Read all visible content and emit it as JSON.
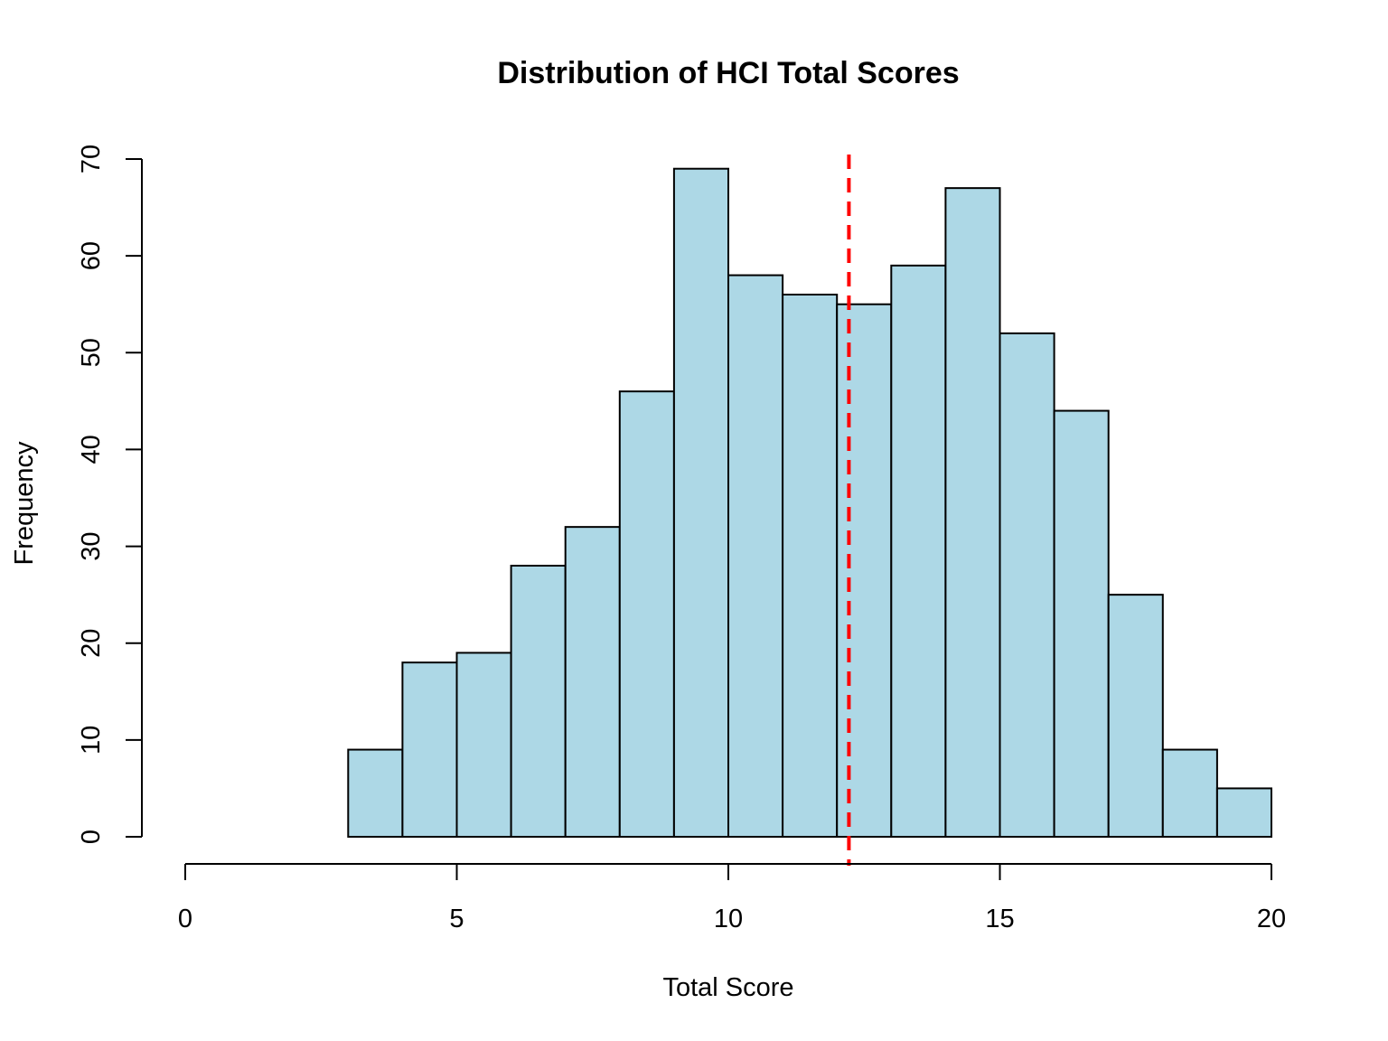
{
  "chart_data": {
    "type": "bar",
    "title": "Distribution of HCI Total Scores",
    "xlabel": "Total Score",
    "ylabel": "Frequency",
    "xlim": [
      0,
      20
    ],
    "ylim": [
      0,
      70
    ],
    "x_ticks": [
      0,
      5,
      10,
      15,
      20
    ],
    "y_ticks": [
      0,
      10,
      20,
      30,
      40,
      50,
      60,
      70
    ],
    "bins": [
      {
        "start": 3,
        "end": 4,
        "count": 9
      },
      {
        "start": 4,
        "end": 5,
        "count": 18
      },
      {
        "start": 5,
        "end": 6,
        "count": 19
      },
      {
        "start": 6,
        "end": 7,
        "count": 28
      },
      {
        "start": 7,
        "end": 8,
        "count": 32
      },
      {
        "start": 8,
        "end": 9,
        "count": 46
      },
      {
        "start": 9,
        "end": 10,
        "count": 69
      },
      {
        "start": 10,
        "end": 11,
        "count": 58
      },
      {
        "start": 11,
        "end": 12,
        "count": 56
      },
      {
        "start": 12,
        "end": 13,
        "count": 55
      },
      {
        "start": 13,
        "end": 14,
        "count": 59
      },
      {
        "start": 14,
        "end": 15,
        "count": 67
      },
      {
        "start": 15,
        "end": 16,
        "count": 52
      },
      {
        "start": 16,
        "end": 17,
        "count": 44
      },
      {
        "start": 17,
        "end": 18,
        "count": 25
      },
      {
        "start": 18,
        "end": 19,
        "count": 9
      },
      {
        "start": 19,
        "end": 20,
        "count": 5
      }
    ],
    "reference_line": {
      "x": 12.22,
      "style": "dashed"
    },
    "grid": false,
    "colors": {
      "bar_fill": "#add8e6",
      "bar_stroke": "#000000",
      "reference_line": "#ff0000"
    }
  }
}
